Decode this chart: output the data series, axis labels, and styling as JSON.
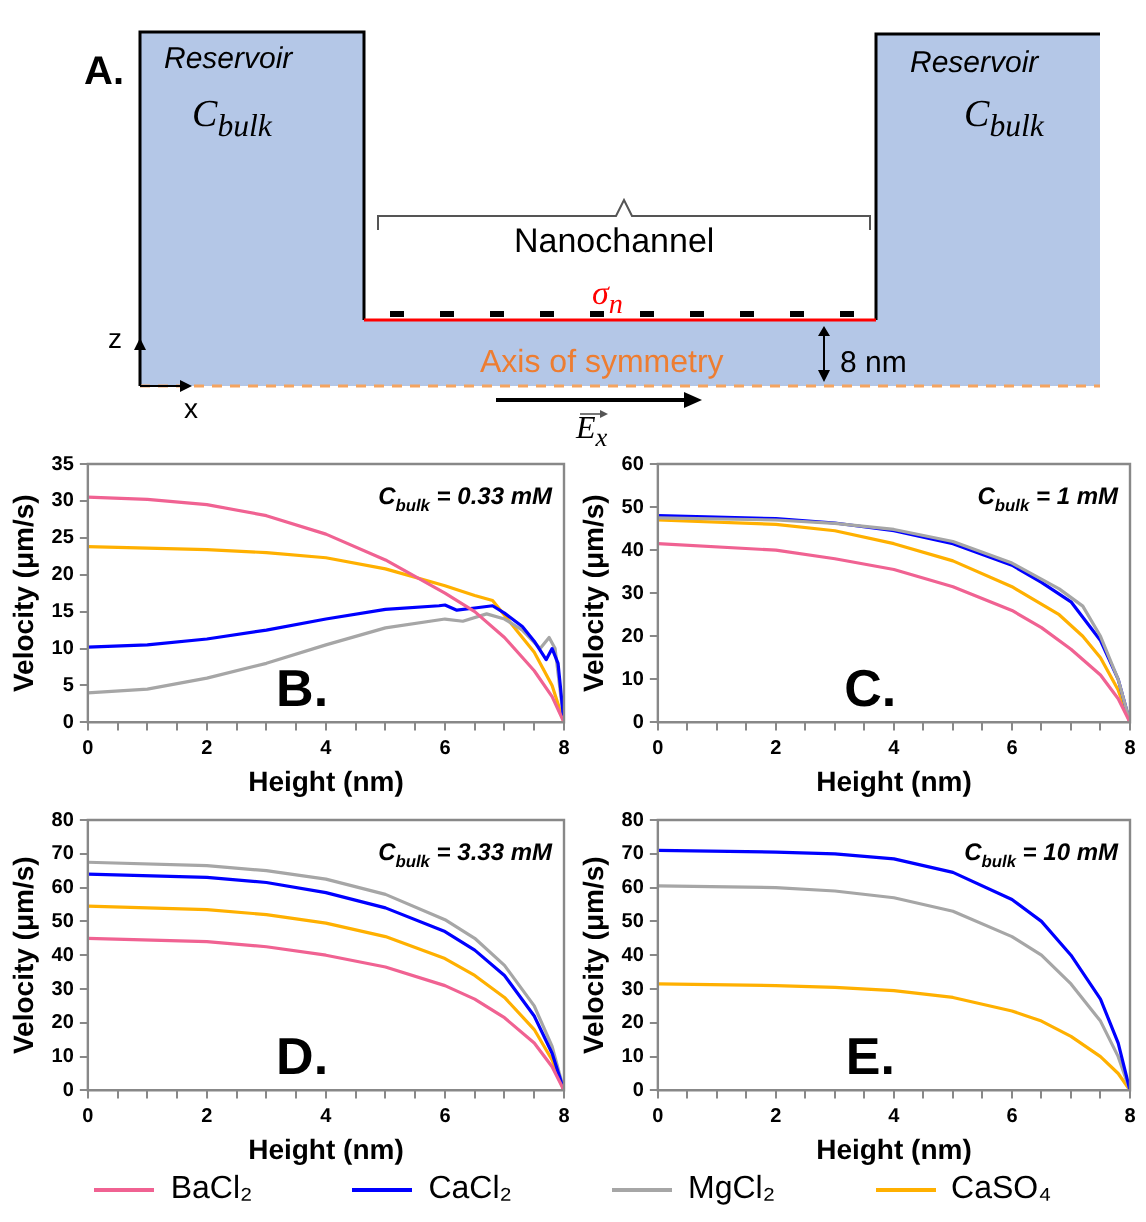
{
  "chart_data": [
    {
      "type": "other",
      "annotations": [
        "A.",
        "Reservoir",
        "C$_{bulk}$",
        "Reservoir",
        "C$_{bulk}$",
        "Nanochannel",
        "σ$_{n}$",
        "Axis of symmetry",
        "8 nm",
        "z",
        "x",
        "E$_{x}$"
      ]
    },
    {
      "type": "line",
      "xlabel": "Height (nm)",
      "ylabel": "Velocity (μm/s)",
      "xlim": [
        0,
        8
      ],
      "ylim": [
        0,
        35
      ],
      "xticks": [
        0,
        {
          "value": 0.5,
          "label": null
        },
        {
          "value": 1,
          "label": null
        },
        {
          "value": 1.5,
          "label": null
        },
        2,
        {
          "value": 2.5,
          "label": null
        },
        {
          "value": 3,
          "label": null
        },
        {
          "value": 3.5,
          "label": null
        },
        4,
        {
          "value": 4.5,
          "label": null
        },
        {
          "value": 5,
          "label": null
        },
        {
          "value": 5.5,
          "label": null
        },
        6,
        {
          "value": 6.5,
          "label": null
        },
        {
          "value": 7,
          "label": null
        },
        {
          "value": 7.5,
          "label": null
        },
        8
      ],
      "yticks": [
        0,
        5,
        10,
        15,
        20,
        25,
        30,
        35
      ],
      "grid": false,
      "marker": "none",
      "line_style": "solid",
      "legend": "bottom",
      "annotations": [
        "C$_{bulk}$ = 0.33 mM",
        "B."
      ],
      "series": [
        {
          "name": "BaCl₂",
          "color": "#f06292",
          "x": [
            0,
            1,
            2,
            3,
            4,
            5,
            6,
            6.5,
            7,
            7.5,
            7.8,
            8
          ],
          "values": [
            30.5,
            30.2,
            29.5,
            28,
            25.5,
            22,
            17.5,
            15,
            11.5,
            7,
            3.5,
            0
          ]
        },
        {
          "name": "CaCl₂",
          "color": "#0000ff",
          "x": [
            0,
            1,
            2,
            3,
            4,
            5,
            5.9,
            6,
            6.2,
            6.5,
            6.8,
            7,
            7.3,
            7.5,
            7.7,
            7.8,
            7.9,
            8
          ],
          "values": [
            10.2,
            10.5,
            11.3,
            12.5,
            14,
            15.3,
            15.8,
            15.9,
            15.2,
            15.5,
            15.8,
            14.8,
            13,
            11,
            8.5,
            10,
            8,
            0
          ]
        },
        {
          "name": "MgCl₂",
          "color": "#a6a6a6",
          "x": [
            0,
            1,
            2,
            3,
            4,
            5,
            6,
            6.3,
            6.7,
            7,
            7.3,
            7.6,
            7.75,
            7.85,
            8
          ],
          "values": [
            4,
            4.5,
            6,
            8,
            10.5,
            12.8,
            14,
            13.7,
            14.7,
            14,
            12.5,
            10,
            11.5,
            10,
            0
          ]
        },
        {
          "name": "CaSO₄",
          "color": "#ffb000",
          "x": [
            0,
            2,
            3,
            4,
            5,
            6,
            6.5,
            6.8,
            7,
            7.5,
            7.8,
            8
          ],
          "values": [
            23.8,
            23.4,
            23,
            22.3,
            20.8,
            18.5,
            17.2,
            16.5,
            14.5,
            9.5,
            5,
            0
          ]
        }
      ]
    },
    {
      "type": "line",
      "xlabel": "Height (nm)",
      "ylabel": "Velocity (μm/s)",
      "xlim": [
        0,
        8
      ],
      "ylim": [
        0,
        60
      ],
      "xticks": [
        0,
        {
          "value": 0.5,
          "label": null
        },
        {
          "value": 1,
          "label": null
        },
        {
          "value": 1.5,
          "label": null
        },
        2,
        {
          "value": 2.5,
          "label": null
        },
        {
          "value": 3,
          "label": null
        },
        {
          "value": 3.5,
          "label": null
        },
        4,
        {
          "value": 4.5,
          "label": null
        },
        {
          "value": 5,
          "label": null
        },
        {
          "value": 5.5,
          "label": null
        },
        6,
        {
          "value": 6.5,
          "label": null
        },
        {
          "value": 7,
          "label": null
        },
        {
          "value": 7.5,
          "label": null
        },
        8
      ],
      "yticks": [
        0,
        10,
        20,
        30,
        40,
        50,
        60
      ],
      "grid": false,
      "marker": "none",
      "line_style": "solid",
      "annotations": [
        "C$_{bulk}$ = 1 mM",
        "C."
      ],
      "series": [
        {
          "color": "#f06292",
          "x": [
            0,
            2,
            3,
            4,
            5,
            6,
            6.5,
            7,
            7.5,
            7.8,
            8
          ],
          "values": [
            41.5,
            40,
            38,
            35.5,
            31.5,
            26,
            22,
            17,
            11,
            5.5,
            0
          ]
        },
        {
          "color": "#a6a6a6",
          "x": [
            0,
            2,
            3,
            4,
            5,
            6,
            6.8,
            7.2,
            7.5,
            7.8,
            8
          ],
          "values": [
            47.5,
            47,
            46.2,
            44.8,
            42,
            37,
            31,
            27,
            20,
            10,
            0
          ]
        },
        {
          "color": "#0000ff",
          "x": [
            0,
            2,
            3,
            4,
            5,
            6,
            6.5,
            7,
            7.5,
            7.8,
            8
          ],
          "values": [
            48,
            47.3,
            46.3,
            44.5,
            41.5,
            36.5,
            32.5,
            28,
            19,
            10,
            0
          ]
        },
        {
          "color": "#ffb000",
          "x": [
            0,
            2,
            3,
            4,
            5,
            6,
            6.8,
            7.2,
            7.5,
            7.8,
            8
          ],
          "values": [
            47,
            46,
            44.5,
            41.5,
            37.5,
            31.5,
            25,
            20,
            15,
            7.5,
            0
          ]
        }
      ]
    },
    {
      "type": "line",
      "xlabel": "Height (nm)",
      "ylabel": "Velocity (μm/s)",
      "xlim": [
        0,
        8
      ],
      "ylim": [
        0,
        80
      ],
      "xticks": [
        0,
        {
          "value": 0.5,
          "label": null
        },
        {
          "value": 1,
          "label": null
        },
        {
          "value": 1.5,
          "label": null
        },
        2,
        {
          "value": 2.5,
          "label": null
        },
        {
          "value": 3,
          "label": null
        },
        {
          "value": 3.5,
          "label": null
        },
        4,
        {
          "value": 4.5,
          "label": null
        },
        {
          "value": 5,
          "label": null
        },
        {
          "value": 5.5,
          "label": null
        },
        6,
        {
          "value": 6.5,
          "label": null
        },
        {
          "value": 7,
          "label": null
        },
        {
          "value": 7.5,
          "label": null
        },
        8
      ],
      "yticks": [
        0,
        10,
        20,
        30,
        40,
        50,
        60,
        70,
        80
      ],
      "grid": false,
      "marker": "none",
      "line_style": "solid",
      "annotations": [
        "C$_{bulk}$ = 3.33 mM",
        "D."
      ],
      "series": [
        {
          "color": "#f06292",
          "x": [
            0,
            2,
            3,
            4,
            5,
            6,
            6.5,
            7,
            7.5,
            7.8,
            8
          ],
          "values": [
            45,
            44,
            42.5,
            40,
            36.5,
            31,
            27,
            21.5,
            14,
            7,
            0
          ]
        },
        {
          "color": "#0000ff",
          "x": [
            0,
            2,
            3,
            4,
            5,
            6,
            6.5,
            7,
            7.5,
            7.8,
            8
          ],
          "values": [
            64,
            63,
            61.5,
            58.5,
            54,
            47,
            41.5,
            34,
            22,
            11,
            0
          ]
        },
        {
          "color": "#a6a6a6",
          "x": [
            0,
            2,
            3,
            4,
            5,
            6,
            6.5,
            7,
            7.5,
            7.8,
            8
          ],
          "values": [
            67.5,
            66.5,
            65,
            62.5,
            58,
            50.5,
            45,
            37,
            25,
            13,
            0
          ]
        },
        {
          "color": "#ffb000",
          "x": [
            0,
            2,
            3,
            4,
            5,
            6,
            6.5,
            7,
            7.5,
            7.8,
            8
          ],
          "values": [
            54.5,
            53.5,
            52,
            49.5,
            45.5,
            39,
            34,
            27.5,
            18,
            9,
            0
          ]
        }
      ]
    },
    {
      "type": "line",
      "xlabel": "Height (nm)",
      "ylabel": "Velocity (μm/s)",
      "xlim": [
        0,
        8
      ],
      "ylim": [
        0,
        80
      ],
      "xticks": [
        0,
        {
          "value": 0.5,
          "label": null
        },
        {
          "value": 1,
          "label": null
        },
        {
          "value": 1.5,
          "label": null
        },
        2,
        {
          "value": 2.5,
          "label": null
        },
        {
          "value": 3,
          "label": null
        },
        {
          "value": 3.5,
          "label": null
        },
        4,
        {
          "value": 4.5,
          "label": null
        },
        {
          "value": 5,
          "label": null
        },
        {
          "value": 5.5,
          "label": null
        },
        6,
        {
          "value": 6.5,
          "label": null
        },
        {
          "value": 7,
          "label": null
        },
        {
          "value": 7.5,
          "label": null
        },
        8
      ],
      "yticks": [
        0,
        10,
        20,
        30,
        40,
        50,
        60,
        70,
        80
      ],
      "grid": false,
      "marker": "none",
      "line_style": "solid",
      "annotations": [
        "C$_{bulk}$ = 10 mM",
        "E."
      ],
      "series": [
        {
          "color": "#0000ff",
          "x": [
            0,
            2,
            3,
            4,
            5,
            6,
            6.5,
            7,
            7.5,
            7.8,
            8
          ],
          "values": [
            71,
            70.5,
            70,
            68.5,
            64.5,
            56.5,
            50,
            40,
            27,
            14,
            0
          ]
        },
        {
          "color": "#a6a6a6",
          "x": [
            0,
            2,
            3,
            4,
            5,
            6,
            6.5,
            7,
            7.5,
            7.8,
            8
          ],
          "values": [
            60.5,
            60,
            59,
            57,
            53,
            45.5,
            40,
            31.5,
            20.5,
            10,
            0
          ]
        },
        {
          "color": "#ffb000",
          "x": [
            0,
            2,
            3,
            4,
            5,
            6,
            6.5,
            7,
            7.5,
            7.8,
            8
          ],
          "values": [
            31.5,
            31,
            30.5,
            29.5,
            27.5,
            23.5,
            20.5,
            16,
            10,
            5,
            0
          ]
        }
      ]
    }
  ]
}
